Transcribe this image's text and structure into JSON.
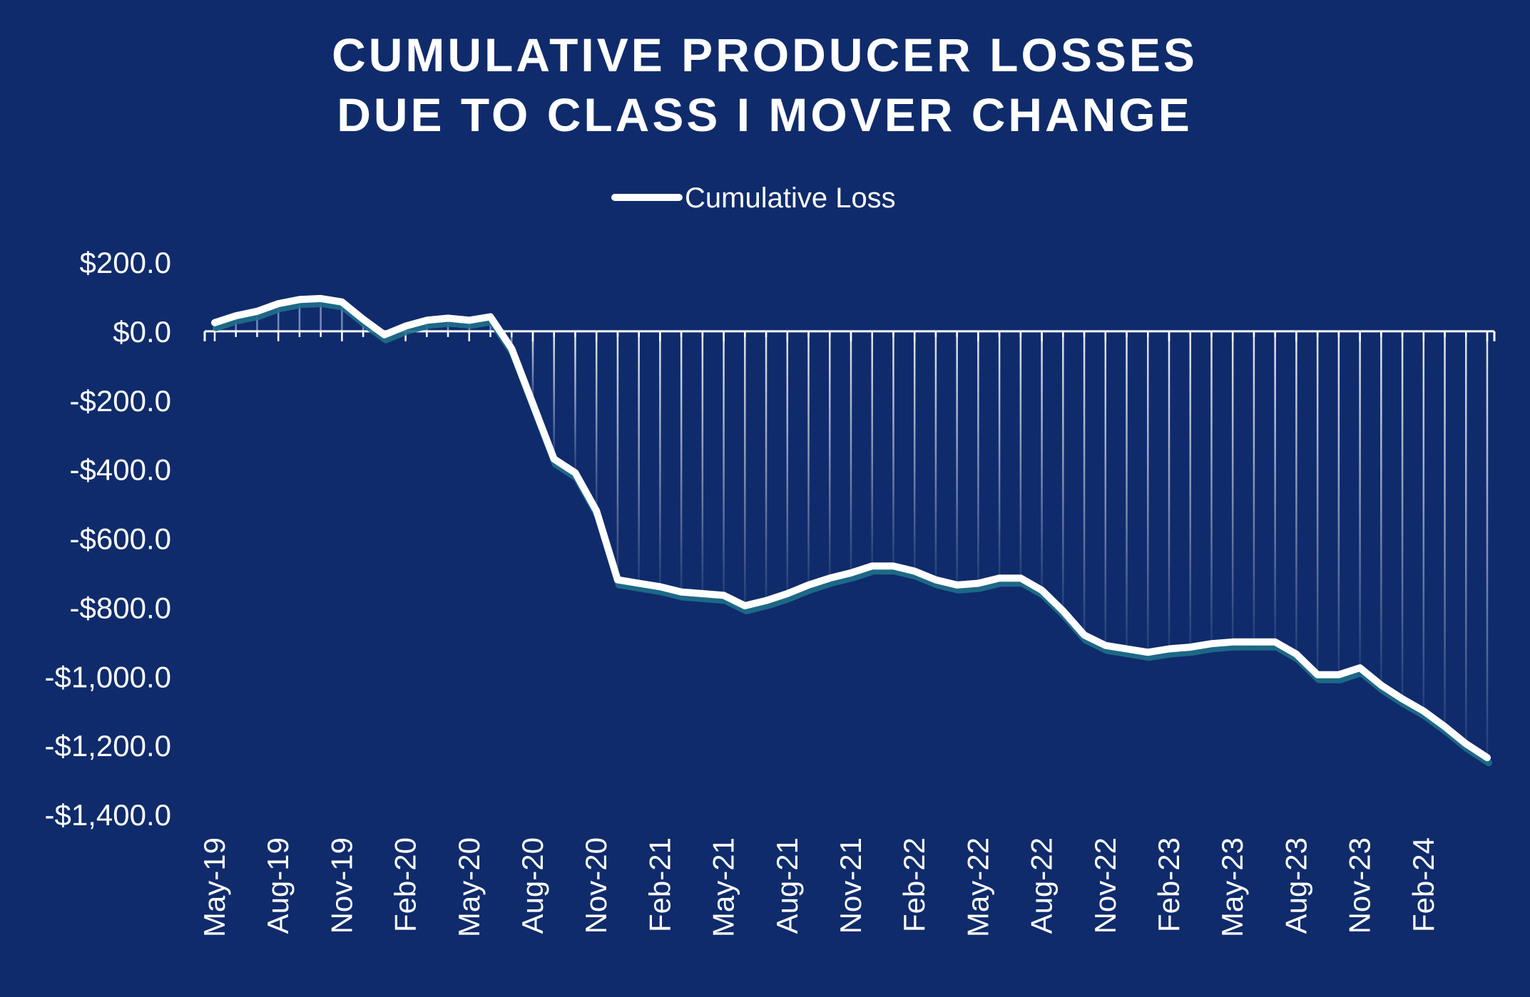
{
  "chart_data": {
    "type": "line",
    "title_line1": "CUMULATIVE PRODUCER LOSSES",
    "title_line2": "DUE TO CLASS I MOVER CHANGE",
    "xlabel": "",
    "ylabel": "",
    "legend": {
      "label": "Cumulative Loss",
      "placement": "top-center"
    },
    "ylim": [
      -1400,
      200
    ],
    "y_ticks": [
      200,
      0,
      -200,
      -400,
      -600,
      -800,
      -1000,
      -1200,
      -1400
    ],
    "y_tick_labels": [
      "$200.0",
      "$0.0",
      "-$200.0",
      "-$400.0",
      "-$600.0",
      "-$800.0",
      "-$1,000.0",
      "-$1,200.0",
      "-$1,400.0"
    ],
    "x_tick_labels": [
      "May-19",
      "Aug-19",
      "Nov-19",
      "Feb-20",
      "May-20",
      "Aug-20",
      "Nov-20",
      "Feb-21",
      "May-21",
      "Aug-21",
      "Nov-21",
      "Feb-22",
      "May-22",
      "Aug-22",
      "Nov-22",
      "Feb-23",
      "May-23",
      "Aug-23",
      "Nov-23",
      "Feb-24"
    ],
    "x_tick_every": 3,
    "series": [
      {
        "name": "Cumulative Loss",
        "color": "#ffffff",
        "shadow_color": "#1f6f8b",
        "x": [
          "May-19",
          "Jun-19",
          "Jul-19",
          "Aug-19",
          "Sep-19",
          "Oct-19",
          "Nov-19",
          "Dec-19",
          "Jan-20",
          "Feb-20",
          "Mar-20",
          "Apr-20",
          "May-20",
          "Jun-20",
          "Jul-20",
          "Aug-20",
          "Sep-20",
          "Oct-20",
          "Nov-20",
          "Dec-20",
          "Jan-21",
          "Feb-21",
          "Mar-21",
          "Apr-21",
          "May-21",
          "Jun-21",
          "Jul-21",
          "Aug-21",
          "Sep-21",
          "Oct-21",
          "Nov-21",
          "Dec-21",
          "Jan-22",
          "Feb-22",
          "Mar-22",
          "Apr-22",
          "May-22",
          "Jun-22",
          "Jul-22",
          "Aug-22",
          "Sep-22",
          "Oct-22",
          "Nov-22",
          "Dec-22",
          "Jan-23",
          "Feb-23",
          "Mar-23",
          "Apr-23",
          "May-23",
          "Jun-23",
          "Jul-23",
          "Aug-23",
          "Sep-23",
          "Oct-23",
          "Nov-23",
          "Dec-23",
          "Jan-24",
          "Feb-24",
          "Mar-24",
          "Apr-24",
          "May-24"
        ],
        "values": [
          25,
          45,
          58,
          80,
          92,
          95,
          85,
          35,
          -10,
          15,
          32,
          38,
          32,
          42,
          -50,
          -210,
          -370,
          -410,
          -520,
          -720,
          -730,
          -740,
          -755,
          -760,
          -765,
          -795,
          -780,
          -760,
          -735,
          -715,
          -700,
          -680,
          -680,
          -695,
          -720,
          -735,
          -730,
          -715,
          -715,
          -750,
          -810,
          -880,
          -910,
          -920,
          -930,
          -920,
          -915,
          -905,
          -900,
          -900,
          -900,
          -935,
          -995,
          -995,
          -975,
          -1025,
          -1065,
          -1100,
          -1145,
          -1195,
          -1235
        ]
      }
    ],
    "grid": false,
    "colors": {
      "background": "#0f2b6b",
      "text": "#ffffff",
      "drop_lines": "#ffffff"
    }
  }
}
